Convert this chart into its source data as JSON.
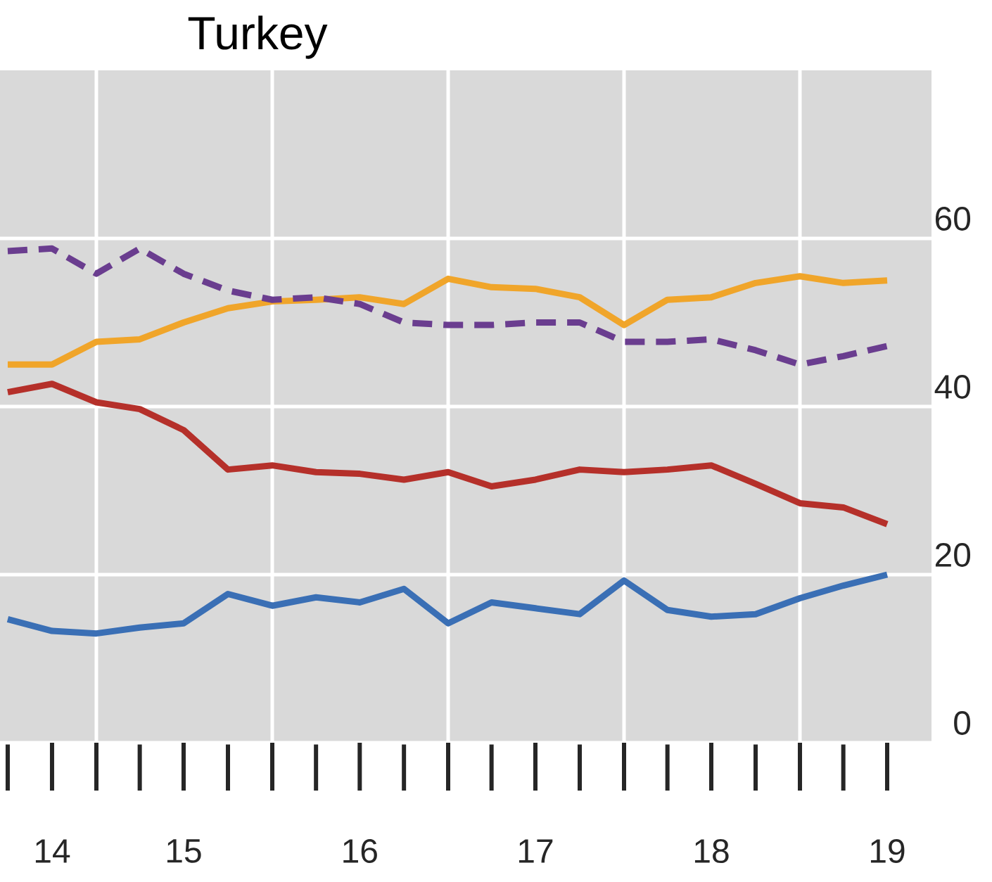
{
  "chart_data": {
    "type": "line",
    "title": "Turkey",
    "x": [
      "2014-07-01",
      "2014-10-01",
      "2015-01-01",
      "2015-04-01",
      "2015-07-01",
      "2015-10-01",
      "2016-01-01",
      "2016-04-01",
      "2016-07-01",
      "2016-10-01",
      "2017-01-01",
      "2017-04-01",
      "2017-07-01",
      "2017-10-01",
      "2018-01-01",
      "2018-04-01",
      "2018-07-01",
      "2018-10-01",
      "2019-01-01",
      "2019-04-01",
      "2019-07-01"
    ],
    "series": [
      {
        "color": "#3a6fb5",
        "line_style": "solid",
        "values": [
          14.7,
          13.3,
          13,
          13.7,
          14.2,
          17.7,
          16.3,
          17.3,
          16.7,
          18.3,
          14.2,
          16.7,
          16,
          15.3,
          19.3,
          15.8,
          15,
          15.3,
          17.2,
          18.7,
          20
        ]
      },
      {
        "color": "#b5302a",
        "line_style": "solid",
        "values": [
          41.7,
          42.7,
          40.5,
          39.7,
          37.2,
          32.5,
          33,
          32.2,
          32,
          31.3,
          32.2,
          30.5,
          31.3,
          32.5,
          32.2,
          32.5,
          33,
          30.8,
          28.5,
          28,
          26
        ]
      },
      {
        "color": "#f0a52a",
        "line_style": "solid",
        "values": [
          45,
          45,
          47.7,
          48,
          50,
          51.7,
          52.5,
          52.7,
          53,
          52.2,
          55.2,
          54.2,
          54,
          53,
          49.7,
          52.7,
          53,
          54.7,
          55.5,
          54.7,
          55
        ]
      },
      {
        "color": "#6a3d8f",
        "line_style": "dashed",
        "values": [
          58.5,
          58.8,
          55.8,
          58.8,
          55.8,
          53.8,
          52.7,
          53,
          52.2,
          50,
          49.7,
          49.7,
          50,
          50,
          47.7,
          47.7,
          48,
          46.7,
          45,
          46,
          47.2
        ]
      }
    ],
    "xlim": [
      "2014-06-15",
      "2019-10-01"
    ],
    "ylim": [
      0,
      80
    ],
    "xticks": [
      {
        "value": "2014-10-01",
        "label": "14"
      },
      {
        "value": "2015-01-01",
        "label": null
      },
      {
        "value": "2015-07-01",
        "label": "15"
      },
      {
        "value": "2016-01-01",
        "label": null
      },
      {
        "value": "2016-07-01",
        "label": "16"
      },
      {
        "value": "2017-01-01",
        "label": null
      },
      {
        "value": "2017-07-01",
        "label": "17"
      },
      {
        "value": "2018-01-01",
        "label": null
      },
      {
        "value": "2018-07-01",
        "label": "18"
      },
      {
        "value": "2019-01-01",
        "label": null
      },
      {
        "value": "2019-07-01",
        "label": "19"
      }
    ],
    "yticks": [
      0,
      20,
      40,
      60
    ],
    "grid": true
  }
}
